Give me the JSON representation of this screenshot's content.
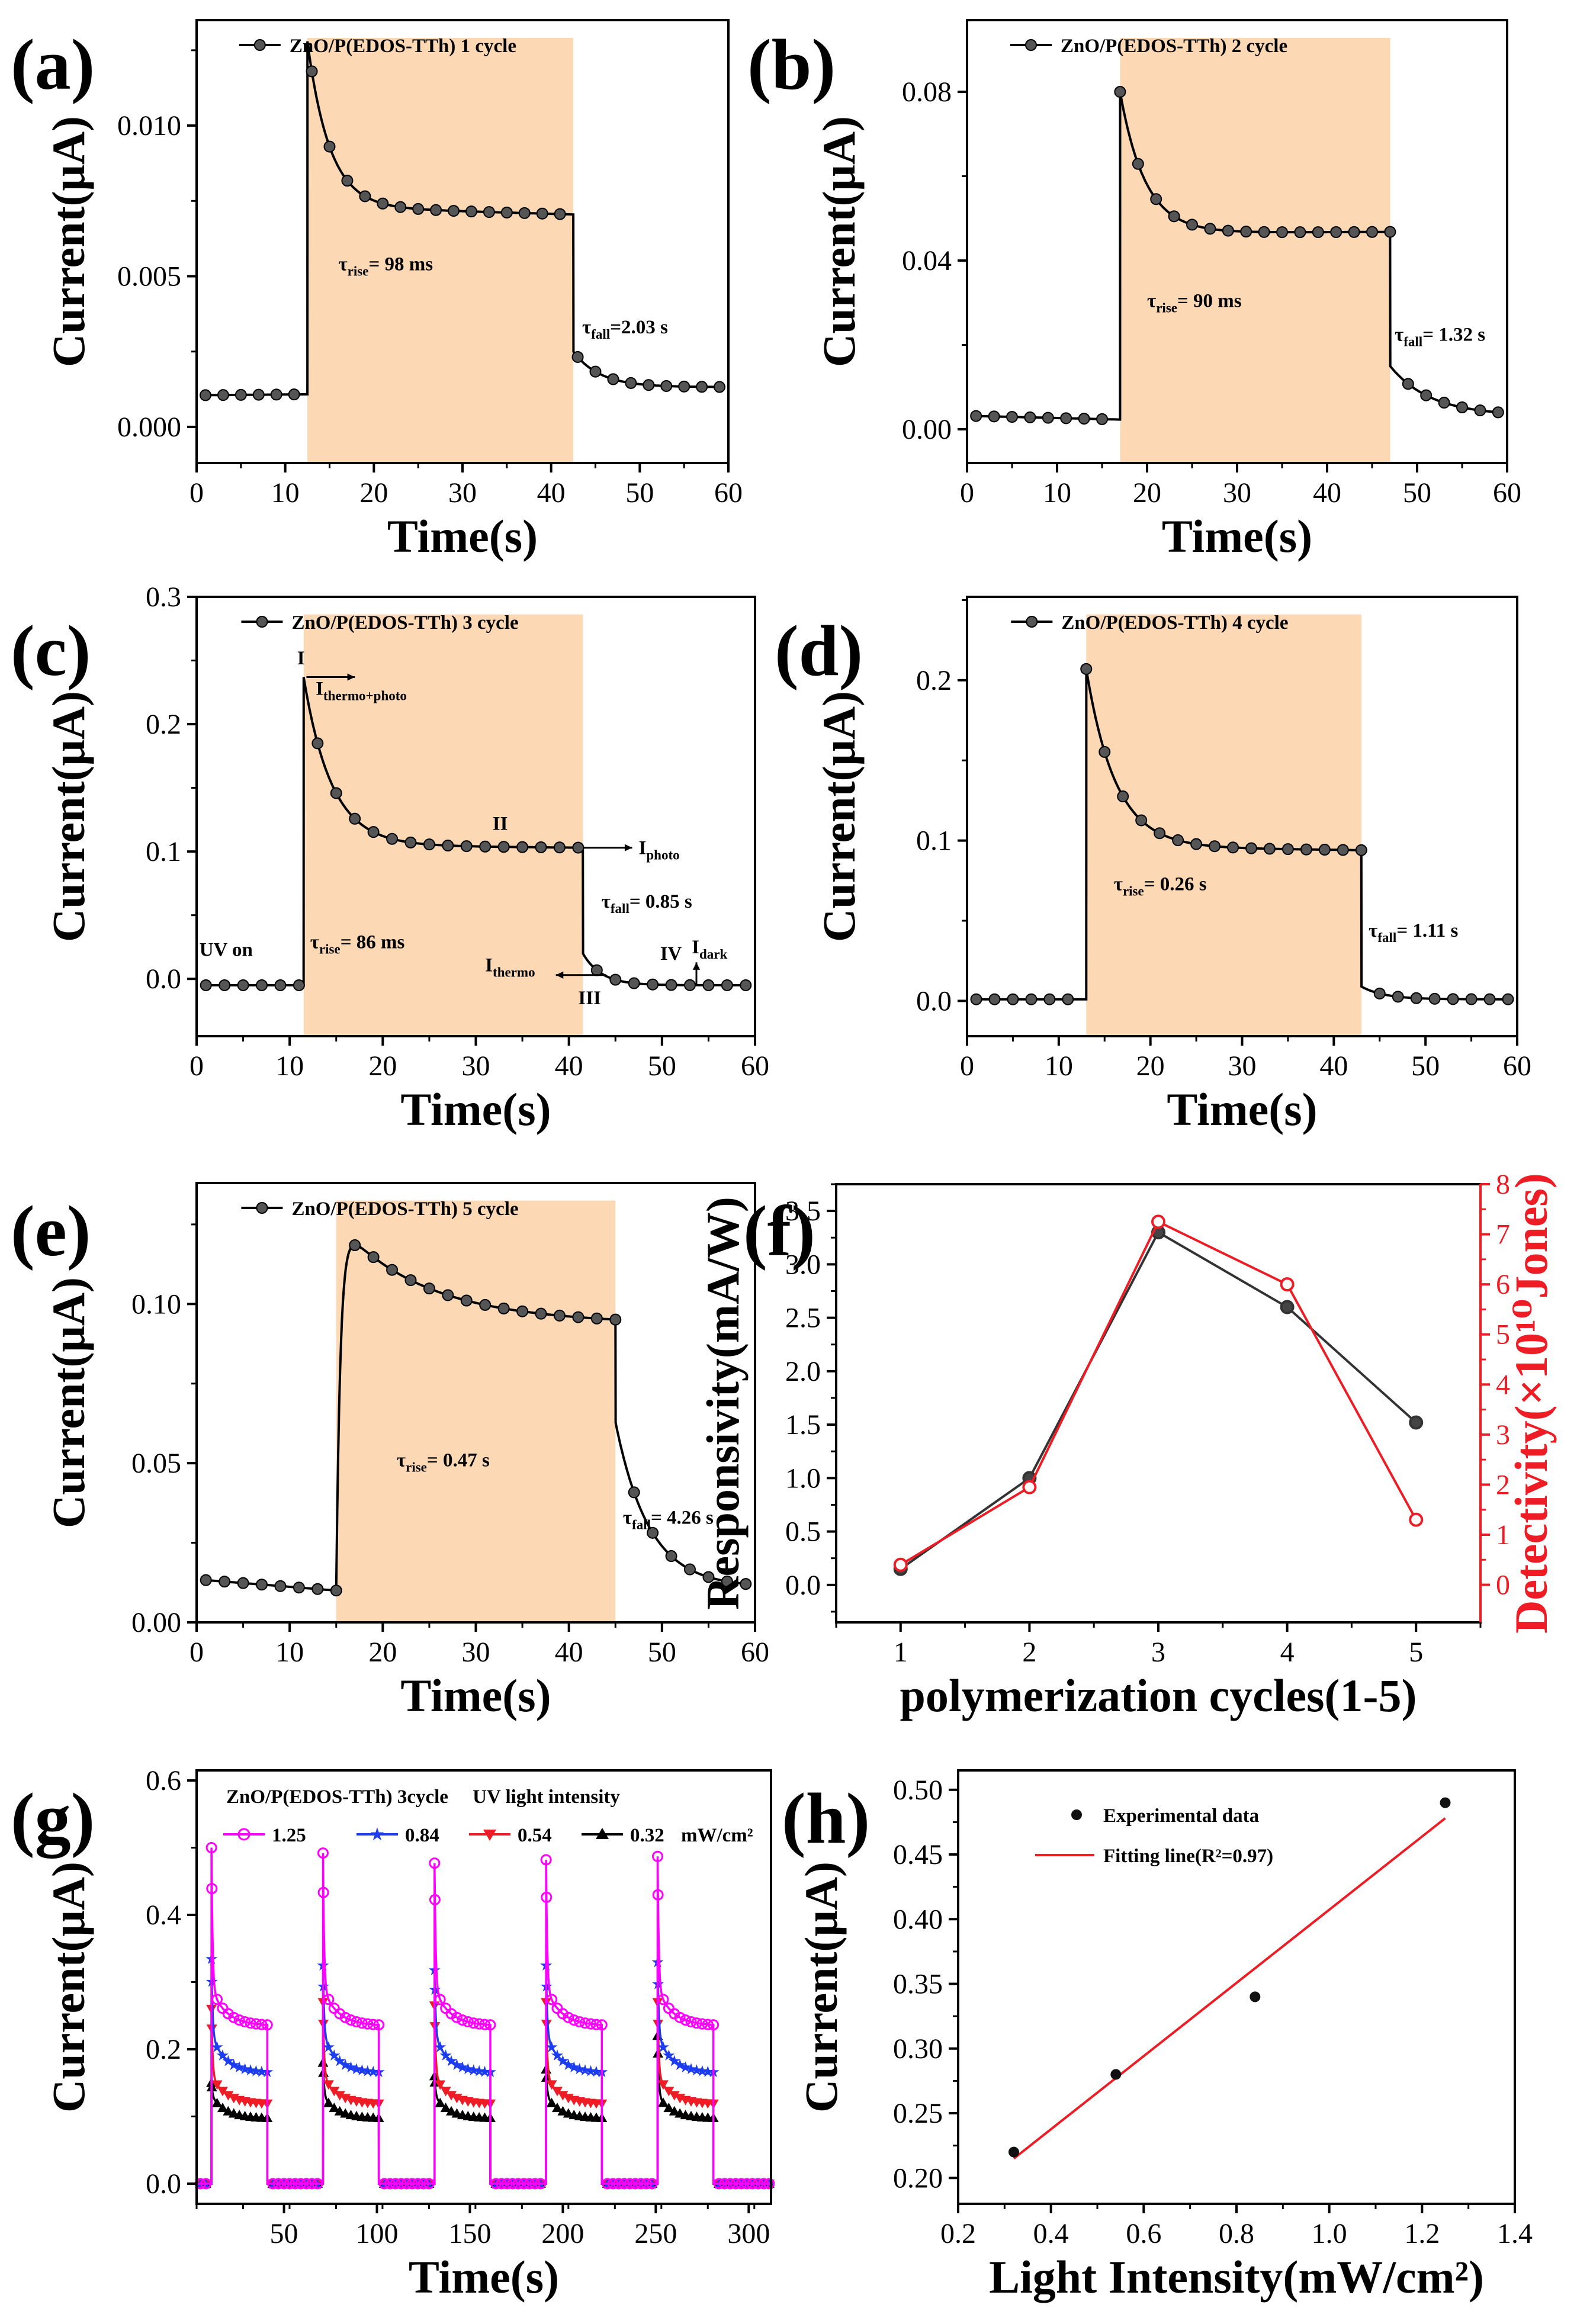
{
  "chart_data": [
    {
      "id": "a",
      "type": "line",
      "panel_label": "(a)",
      "title": "",
      "xlabel": "Time(s)",
      "ylabel": "Current(μA)",
      "xlim": [
        0,
        60
      ],
      "ylim": [
        -0.0012,
        0.0135
      ],
      "xticks": [
        0,
        10,
        20,
        30,
        40,
        50,
        60
      ],
      "yticks": [
        0.0,
        0.005,
        0.01
      ],
      "ytick_labels": [
        "0.000",
        "0.005",
        "0.010"
      ],
      "light_on": [
        12.5,
        42.5
      ],
      "legend": "ZnO/P(EDOS-TTh) 1 cycle",
      "curve": {
        "dark1": 0.00105,
        "dark_end": 0.00108,
        "peak": 0.0128,
        "plateau": 0.0073,
        "plateau_end": 0.00705,
        "decay_tau": 2.5,
        "after_drop": 0.0025,
        "dark2": 0.00132,
        "fall_tau": 3.0,
        "markers": [
          1,
          3,
          5,
          7,
          9,
          11,
          13,
          15,
          17,
          19,
          21,
          23,
          25,
          27,
          29,
          31,
          33,
          35,
          37,
          39,
          41,
          43,
          45,
          47,
          49,
          51,
          53,
          55,
          57,
          59
        ]
      },
      "annotations": [
        {
          "text": "τ",
          "sub": "rise",
          "post": "= 98 ms",
          "x": 16.0,
          "y": 0.0052
        },
        {
          "text": "τ",
          "sub": "fall",
          "post": "=2.03 s",
          "x": 43.5,
          "y": 0.0031
        }
      ]
    },
    {
      "id": "b",
      "type": "line",
      "panel_label": "(b)",
      "title": "",
      "xlabel": "Time(s)",
      "ylabel": "Current(μA)",
      "xlim": [
        0,
        60
      ],
      "ylim": [
        -0.008,
        0.097
      ],
      "xticks": [
        0,
        10,
        20,
        30,
        40,
        50,
        60
      ],
      "yticks": [
        0.0,
        0.04,
        0.08
      ],
      "ytick_labels": [
        "0.00",
        "0.04",
        "0.08"
      ],
      "light_on": [
        17,
        47
      ],
      "legend": "ZnO/P(EDOS-TTh) 2 cycle",
      "curve": {
        "dark1": 0.0032,
        "dark_end": 0.0023,
        "peak": 0.08,
        "plateau": 0.0465,
        "plateau_end": 0.0468,
        "decay_tau": 2.8,
        "after_drop": 0.015,
        "dark2": 0.0032,
        "fall_tau": 4.5,
        "markers": [
          1,
          3,
          5,
          7,
          9,
          11,
          13,
          15,
          17,
          19,
          21,
          23,
          25,
          27,
          29,
          31,
          33,
          35,
          37,
          39,
          41,
          43,
          45,
          47,
          49,
          51,
          53,
          55,
          57,
          59
        ]
      },
      "annotations": [
        {
          "text": "τ",
          "sub": "rise",
          "post": "= 90 ms",
          "x": 20.0,
          "y": 0.029
        },
        {
          "text": "τ",
          "sub": "fall",
          "post": "= 1.32 s",
          "x": 47.5,
          "y": 0.021
        }
      ]
    },
    {
      "id": "c",
      "type": "line",
      "panel_label": "(c)",
      "title": "",
      "xlabel": "Time(s)",
      "ylabel": "Current(μA)",
      "xlim": [
        0,
        60
      ],
      "ylim": [
        -0.045,
        0.3
      ],
      "xticks": [
        0,
        10,
        20,
        30,
        40,
        50,
        60
      ],
      "yticks": [
        0.0,
        0.1,
        0.2,
        0.3
      ],
      "ytick_labels": [
        "0.0",
        "0.1",
        "0.2",
        "0.3"
      ],
      "light_on": [
        11.5,
        41.5
      ],
      "legend": "ZnO/P(EDOS-TTh) 3 cycle",
      "curve": {
        "dark1": -0.005,
        "dark_end": -0.005,
        "peak": 0.237,
        "plateau": 0.105,
        "plateau_end": 0.103,
        "decay_tau": 3.0,
        "after_drop": 0.02,
        "dark2": -0.005,
        "fall_tau": 2.0,
        "markers": [
          1,
          3,
          5,
          7,
          9,
          11,
          13,
          15,
          17,
          19,
          21,
          23,
          25,
          27,
          29,
          31,
          33,
          35,
          37,
          39,
          41,
          43,
          45,
          47,
          49,
          51,
          53,
          55,
          57,
          59
        ]
      },
      "annotations": [
        {
          "text": "τ",
          "sub": "rise",
          "post": "= 86 ms",
          "x": 12.2,
          "y": 0.024
        },
        {
          "text": "τ",
          "sub": "fall",
          "post": "= 0.85 s",
          "x": 43.5,
          "y": 0.056
        },
        {
          "text": "UV on",
          "sub": "",
          "post": "",
          "x": 0.3,
          "y": 0.018
        },
        {
          "text": "I",
          "sub": "",
          "post": "",
          "x": 10.8,
          "y": 0.247
        },
        {
          "text": "I",
          "sub": "thermo+photo",
          "post": "",
          "x": 12.8,
          "y": 0.223
        },
        {
          "text": "II",
          "sub": "",
          "post": "",
          "x": 31.8,
          "y": 0.117
        },
        {
          "text": "I",
          "sub": "photo",
          "post": "",
          "x": 47.5,
          "y": 0.098
        },
        {
          "text": "I",
          "sub": "thermo",
          "post": "",
          "x": 31.0,
          "y": 0.006
        },
        {
          "text": "III",
          "sub": "",
          "post": "",
          "x": 41.0,
          "y": -0.02
        },
        {
          "text": "IV",
          "sub": "",
          "post": "",
          "x": 49.8,
          "y": 0.015
        },
        {
          "text": "I",
          "sub": "dark",
          "post": "",
          "x": 53.2,
          "y": 0.02
        }
      ]
    },
    {
      "id": "d",
      "type": "line",
      "panel_label": "(d)",
      "title": "",
      "xlabel": "Time(s)",
      "ylabel": "Current(μA)",
      "xlim": [
        0,
        60
      ],
      "ylim": [
        -0.022,
        0.252
      ],
      "xticks": [
        0,
        10,
        20,
        30,
        40,
        50,
        60
      ],
      "yticks": [
        0.0,
        0.1,
        0.2
      ],
      "ytick_labels": [
        "0.0",
        "0.1",
        "0.2"
      ],
      "light_on": [
        13,
        43
      ],
      "legend": "ZnO/P(EDOS-TTh) 4 cycle",
      "curve": {
        "dark1": 0.001,
        "dark_end": 0.001,
        "peak": 0.207,
        "plateau": 0.096,
        "plateau_end": 0.094,
        "decay_tau": 3.2,
        "after_drop": 0.009,
        "dark2": 0.001,
        "fall_tau": 2.5,
        "markers": [
          1,
          3,
          5,
          7,
          9,
          11,
          13,
          15,
          17,
          19,
          21,
          23,
          25,
          27,
          29,
          31,
          33,
          35,
          37,
          39,
          41,
          43,
          45,
          47,
          49,
          51,
          53,
          55,
          57,
          59
        ]
      },
      "annotations": [
        {
          "text": "τ",
          "sub": "rise",
          "post": "= 0.26 s",
          "x": 16.0,
          "y": 0.069
        },
        {
          "text": "τ",
          "sub": "fall",
          "post": "= 1.11 s",
          "x": 43.8,
          "y": 0.04
        }
      ]
    },
    {
      "id": "e",
      "type": "line",
      "panel_label": "(e)",
      "title": "",
      "xlabel": "Time(s)",
      "ylabel": "Current(μA)",
      "xlim": [
        0,
        60
      ],
      "ylim": [
        0.0,
        0.138
      ],
      "xticks": [
        0,
        10,
        20,
        30,
        40,
        50,
        60
      ],
      "yticks": [
        0.0,
        0.05,
        0.1
      ],
      "ytick_labels": [
        "0.00",
        "0.05",
        "0.10"
      ],
      "light_on": [
        15,
        45
      ],
      "legend": "ZnO/P(EDOS-TTh) 5 cycle",
      "curve": {
        "dark1": 0.0135,
        "dark_end": 0.01,
        "peak": 0.126,
        "plateau": 0.095,
        "plateau_end": 0.094,
        "decay_tau": 9.0,
        "after_drop": 0.063,
        "dark2": 0.011,
        "fall_tau": 3.6,
        "rise_tau": 0.45,
        "markers": [
          1,
          3,
          5,
          7,
          9,
          11,
          13,
          15,
          17,
          19,
          21,
          23,
          25,
          27,
          29,
          31,
          33,
          35,
          37,
          39,
          41,
          43,
          45,
          47,
          49,
          51,
          53,
          55,
          57,
          59
        ]
      },
      "annotations": [
        {
          "text": "τ",
          "sub": "rise",
          "post": "= 0.47 s",
          "x": 21.5,
          "y": 0.049
        },
        {
          "text": "τ",
          "sub": "fall",
          "post": "= 4.26 s",
          "x": 45.8,
          "y": 0.031
        }
      ]
    },
    {
      "id": "f",
      "type": "line",
      "panel_label": "(f)",
      "title": "",
      "xlabel": "polymerization cycles(1-5)",
      "ylabel": "Responsivity(mA/W)",
      "y2label": "Detectivity(×10¹⁰Jones)",
      "xlim": [
        0.5,
        5.5
      ],
      "ylim": [
        -0.35,
        3.75
      ],
      "y2lim": [
        -0.75,
        8.0
      ],
      "xticks": [
        1,
        2,
        3,
        4,
        5
      ],
      "yticks": [
        0.0,
        0.5,
        1.0,
        1.5,
        2.0,
        2.5,
        3.0,
        3.5
      ],
      "ytick_labels": [
        "0.0",
        "0.5",
        "1.0",
        "1.5",
        "2.0",
        "2.5",
        "3.0",
        "3.5"
      ],
      "y2ticks": [
        0,
        1,
        2,
        3,
        4,
        5,
        6,
        7,
        8
      ],
      "categories": [
        1,
        2,
        3,
        4,
        5
      ],
      "series": [
        {
          "name": "Responsivity",
          "axis": "left",
          "color": "#333333",
          "values": [
            0.15,
            1.0,
            3.3,
            2.6,
            1.52
          ]
        },
        {
          "name": "Detectivity",
          "axis": "right",
          "color": "#ee1c24",
          "values": [
            0.4,
            1.95,
            7.25,
            6.0,
            1.3
          ]
        }
      ],
      "right_axis_color": "#ee1c24"
    },
    {
      "id": "g",
      "type": "line",
      "panel_label": "(g)",
      "title": "",
      "xlabel": "Time(s)",
      "ylabel": "Current(μA)",
      "xlim": [
        3,
        312
      ],
      "ylim": [
        -0.03,
        0.615
      ],
      "xticks": [
        50,
        100,
        150,
        200,
        250,
        300
      ],
      "yticks": [
        0.0,
        0.2,
        0.4,
        0.6
      ],
      "ytick_labels": [
        "0.0",
        "0.2",
        "0.4",
        "0.6"
      ],
      "legend_title": "ZnO/P(EDOS-TTh) 3cycle     UV light intensity",
      "unit": "mW/cm²",
      "pulses": [
        [
          11,
          41
        ],
        [
          71,
          101
        ],
        [
          131,
          161
        ],
        [
          191,
          221
        ],
        [
          251,
          281
        ]
      ],
      "series": [
        {
          "name": "1.25",
          "color": "#ff00ff",
          "marker": "circle",
          "peaks": [
            0.5,
            0.492,
            0.477,
            0.482,
            0.487
          ],
          "plateau": 0.235,
          "mid": 0.29
        },
        {
          "name": "0.84",
          "color": "#1c3cf0",
          "marker": "star",
          "peaks": [
            0.335,
            0.325,
            0.318,
            0.325,
            0.33
          ],
          "plateau": 0.165,
          "mid": 0.22
        },
        {
          "name": "0.54",
          "color": "#ee1c24",
          "marker": "triangle-down",
          "peaks": [
            0.26,
            0.27,
            0.265,
            0.27,
            0.27
          ],
          "plateau": 0.118,
          "mid": 0.16
        },
        {
          "name": "0.32",
          "color": "#000000",
          "marker": "triangle-up",
          "peaks": [
            0.15,
            0.18,
            0.16,
            0.17,
            0.22
          ],
          "plateau": 0.097,
          "mid": 0.13
        }
      ]
    },
    {
      "id": "h",
      "type": "scatter",
      "panel_label": "(h)",
      "title": "",
      "xlabel": "Light Intensity(mW/cm²)",
      "ylabel": "Current(μA)",
      "xlim": [
        0.2,
        1.4
      ],
      "ylim": [
        0.18,
        0.515
      ],
      "xticks": [
        0.2,
        0.4,
        0.6,
        0.8,
        1.0,
        1.2,
        1.4
      ],
      "xtick_labels": [
        "0.2",
        "0.4",
        "0.6",
        "0.8",
        "1.0",
        "1.2",
        "1.4"
      ],
      "yticks": [
        0.2,
        0.25,
        0.3,
        0.35,
        0.4,
        0.45,
        0.5
      ],
      "ytick_labels": [
        "0.20",
        "0.25",
        "0.30",
        "0.35",
        "0.40",
        "0.45",
        "0.50"
      ],
      "x": [
        0.32,
        0.54,
        0.84,
        1.25
      ],
      "y": [
        0.22,
        0.28,
        0.34,
        0.49
      ],
      "fit": {
        "x": [
          0.32,
          1.25
        ],
        "y": [
          0.215,
          0.478
        ],
        "color": "#ee1c24"
      },
      "legend": [
        "Experimental data",
        "Fitting line(R²=0.97)"
      ]
    }
  ],
  "colors": {
    "light_band": "#fcd8b4",
    "axis": "#000000"
  }
}
